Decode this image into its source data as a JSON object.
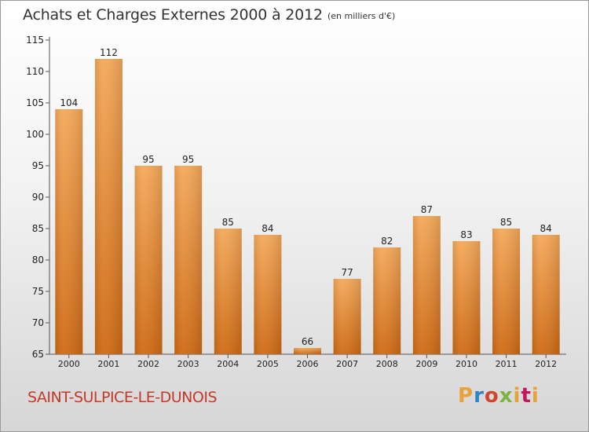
{
  "header": {
    "title": "Achats et Charges Externes 2000 à 2012",
    "subtitle": "(en milliers d'€)"
  },
  "footer": {
    "commune": "SAINT-SULPICE-LE-DUNOIS",
    "logo": "Proxiti"
  },
  "colors": {
    "bar_top": "#f5a95a",
    "bar_bottom": "#cf6a14",
    "commune_text": "#c4392a"
  },
  "chart_data": {
    "type": "bar",
    "title": "Achats et Charges Externes 2000 à 2012",
    "subtitle": "(en milliers d'€)",
    "categories": [
      "2000",
      "2001",
      "2002",
      "2003",
      "2004",
      "2005",
      "2006",
      "2007",
      "2008",
      "2009",
      "2010",
      "2011",
      "2012"
    ],
    "values": [
      104,
      112,
      95,
      95,
      85,
      84,
      66,
      77,
      82,
      87,
      83,
      85,
      84
    ],
    "ylim": [
      65,
      115
    ],
    "yticks": [
      65,
      70,
      75,
      80,
      85,
      90,
      95,
      100,
      105,
      110,
      115
    ],
    "xlabel": "",
    "ylabel": "",
    "grid": false,
    "data_labels": true
  }
}
